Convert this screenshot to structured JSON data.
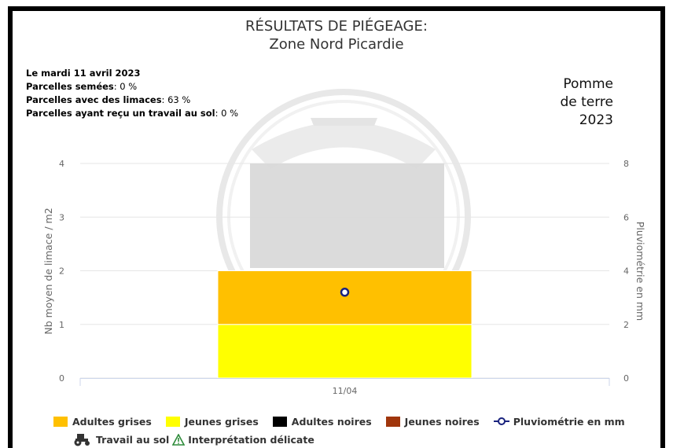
{
  "title_line1": "RÉSULTATS DE PIÉGEAGE:",
  "title_line2": "Zone Nord Picardie",
  "info": {
    "date": "Le mardi 11 avril 2023",
    "sown_label": "Parcelles semées",
    "sown_value": ": 0 %",
    "slugs_label": "Parcelles avec des limaces",
    "slugs_value": ": 63 %",
    "tillage_label": "Parcelles ayant reçu un travail au sol",
    "tillage_value": ": 0 %"
  },
  "crop": {
    "line1": "Pomme",
    "line2": "de terre",
    "line3": "2023"
  },
  "colors": {
    "adultes_grises": "#ffc000",
    "jeunes_grises": "#ffff00",
    "adultes_noires": "#000000",
    "jeunes_noires": "#a0360c",
    "pluvio": "#1a237e",
    "interp": "#2e8b3a"
  },
  "chart_data": {
    "type": "bar",
    "stacked": true,
    "categories": [
      "11/04"
    ],
    "series": [
      {
        "name": "Jeunes grises",
        "values": [
          1
        ],
        "color": "#ffff00"
      },
      {
        "name": "Adultes grises",
        "values": [
          1
        ],
        "color": "#ffc000"
      },
      {
        "name": "Adultes noires",
        "values": [
          0
        ],
        "color": "#000000"
      },
      {
        "name": "Jeunes noires",
        "values": [
          0
        ],
        "color": "#a0360c"
      }
    ],
    "line_series": {
      "name": "Pluviométrie en mm",
      "values": [
        3.2
      ],
      "axis": "right"
    },
    "ylabel": "Nb moyen de limace / m2",
    "ylabel_right": "Pluviométrie en mm",
    "ylim": [
      0,
      4
    ],
    "ylim_right": [
      0,
      8
    ],
    "yticks": [
      "0",
      "1",
      "2",
      "3",
      "4"
    ],
    "yticks_right": [
      "0",
      "2",
      "4",
      "6",
      "8"
    ],
    "grid": true,
    "legend": "bottom"
  },
  "legend": {
    "adultes_grises": "Adultes grises",
    "jeunes_grises": "Jeunes grises",
    "adultes_noires": "Adultes noires",
    "jeunes_noires": "Jeunes noires",
    "pluvio": "Pluviométrie en mm",
    "travail": "Travail au sol",
    "interpretation": "Interprétation délicate"
  },
  "icons": {
    "travail": "tractor-icon",
    "interpretation": "warning-triangle-icon"
  }
}
